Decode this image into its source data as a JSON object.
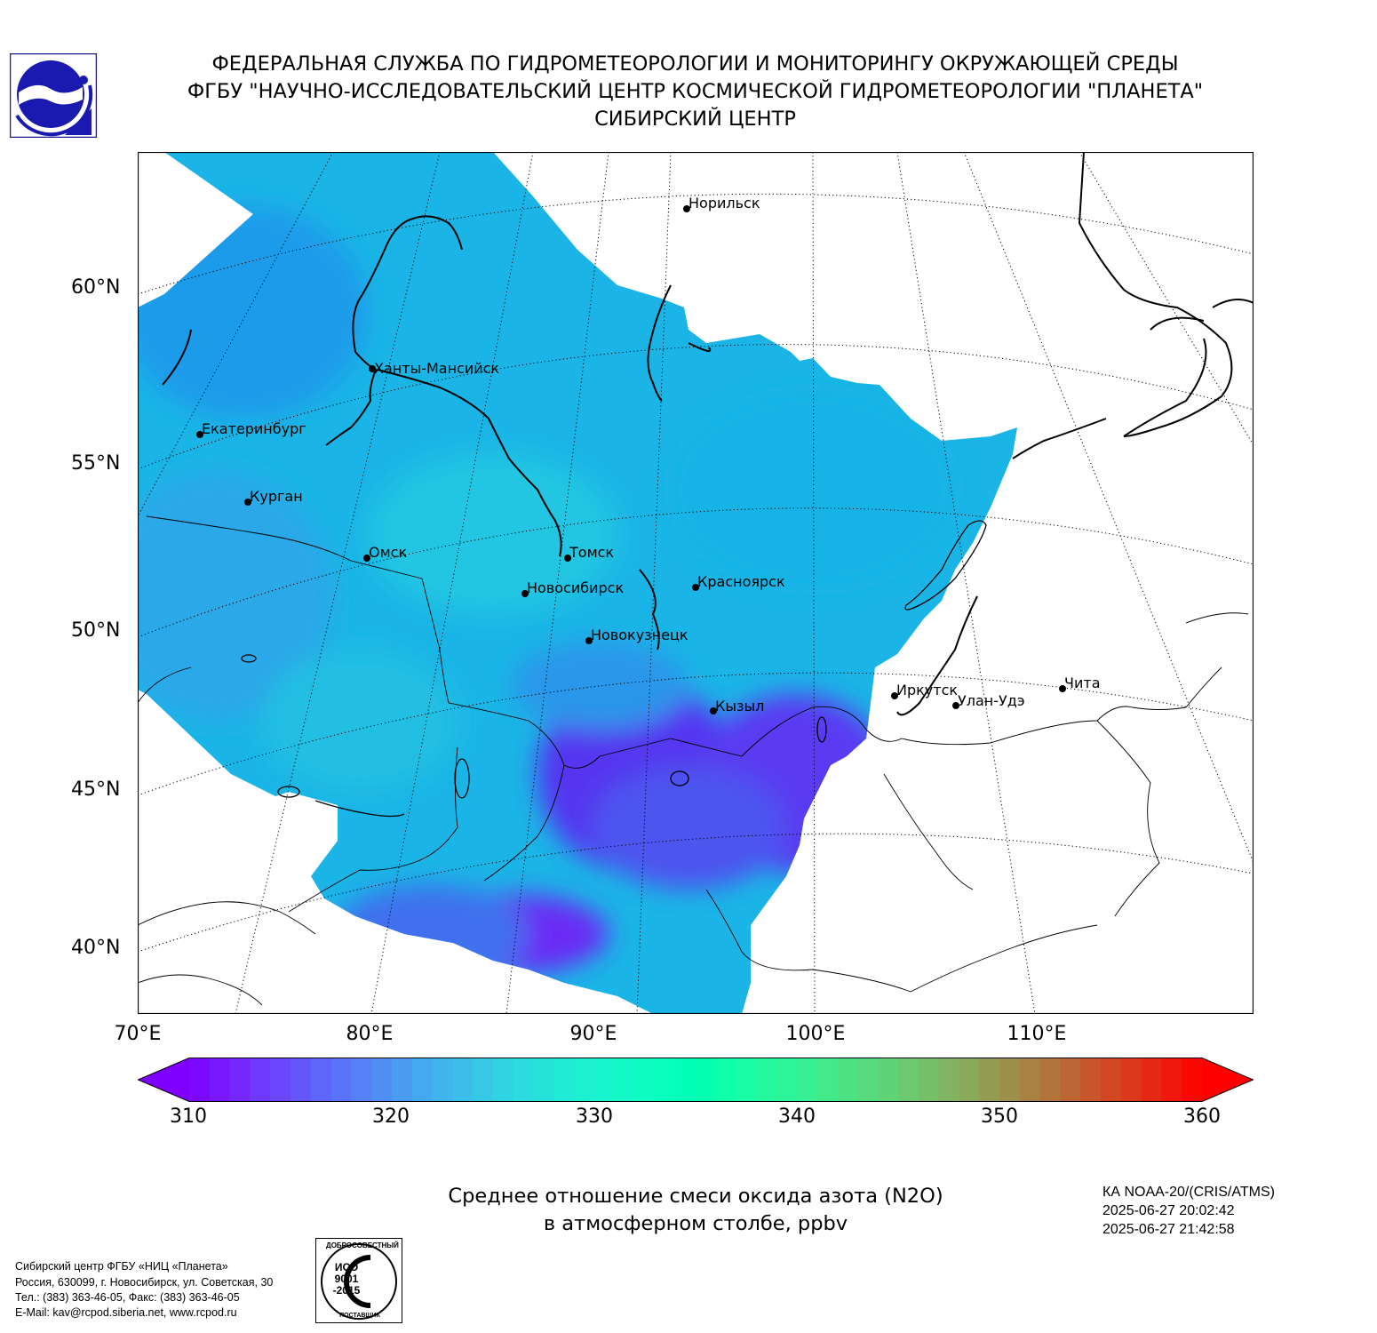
{
  "header": {
    "line1": "ФЕДЕРАЛЬНАЯ СЛУЖБА ПО ГИДРОМЕТЕОРОЛОГИИ И МОНИТОРИНГУ ОКРУЖАЮЩЕЙ СРЕДЫ",
    "line2": "ФГБУ \"НАУЧНО-ИССЛЕДОВАТЕЛЬСКИЙ ЦЕНТР КОСМИЧЕСКОЙ ГИДРОМЕТЕОРОЛОГИИ \"ПЛАНЕТА\"",
    "line3": "СИБИРСКИЙ ЦЕНТР"
  },
  "map": {
    "lat_labels": [
      "60°N",
      "55°N",
      "50°N",
      "45°N",
      "40°N"
    ],
    "lon_labels": [
      "70°E",
      "80°E",
      "90°E",
      "100°E",
      "110°E"
    ],
    "cities": [
      "Норильск",
      "Ханты-Мансийск",
      "Екатеринбург",
      "Курган",
      "Омск",
      "Томск",
      "Новосибирск",
      "Красноярск",
      "Новокузнецк",
      "Иркутск",
      "Улан-Удэ",
      "Чита",
      "Кызыл"
    ]
  },
  "colorbar": {
    "min": 310,
    "max": 360,
    "ticks": [
      "310",
      "320",
      "330",
      "340",
      "350",
      "360"
    ],
    "colormap": "rainbow",
    "extend": "both"
  },
  "title": {
    "line1": "Среднее отношение смеси оксида азота (N2O)",
    "line2": "в атмосферном столбе, ppbv"
  },
  "meta": {
    "satellite": "КА NOAA-20/(CRIS/ATMS)",
    "time_start": "2025-06-27 20:02:42",
    "time_end": "2025-06-27 21:42:58"
  },
  "footer": {
    "org": "Сибирский центр ФГБУ «НИЦ «Планета»",
    "address": "Россия, 630099, г. Новосибирск, ул. Советская, 30",
    "phone": "Тел.: (383) 363-46-05, Факс: (383) 363-46-05",
    "email": "E-Mail: kav@rcpod.siberia.net, www.rcpod.ru"
  },
  "iso_stamp": {
    "top": "ДОБРОСОВЕСТНЫЙ",
    "code": "ИСО 9001 -2015",
    "bottom": "ПОСТАВЩИК"
  }
}
